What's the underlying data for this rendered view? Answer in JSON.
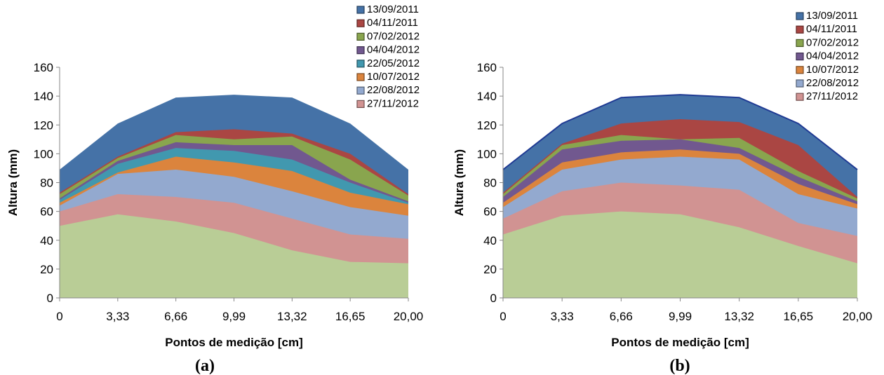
{
  "chart_data": [
    {
      "type": "area",
      "caption": "(a)",
      "xlabel": "Pontos de medição [cm]",
      "ylabel": "Altura (mm)",
      "categories": [
        "0",
        "3,33",
        "6,66",
        "9,99",
        "13,32",
        "16,65",
        "20,00"
      ],
      "ylim": [
        0,
        160
      ],
      "yticks": [
        "0",
        "20",
        "40",
        "60",
        "80",
        "100",
        "120",
        "140",
        "160"
      ],
      "legend_position": "top-right",
      "series": [
        {
          "name": "13/09/2011",
          "color": "#4572A7",
          "values": [
            89,
            121,
            139,
            141,
            139,
            121,
            89
          ]
        },
        {
          "name": "04/11/2011",
          "color": "#AA4643",
          "values": [
            73,
            98,
            115,
            117,
            114,
            100,
            72
          ]
        },
        {
          "name": "07/02/2012",
          "color": "#89A54E",
          "values": [
            72,
            97,
            113,
            110,
            112,
            96,
            71
          ]
        },
        {
          "name": "04/04/2012",
          "color": "#71588F",
          "values": [
            69,
            95,
            108,
            106,
            106,
            82,
            67
          ]
        },
        {
          "name": "22/05/2012",
          "color": "#4198AF",
          "values": [
            68,
            93,
            104,
            102,
            96,
            80,
            66
          ]
        },
        {
          "name": "10/07/2012",
          "color": "#DB843D",
          "values": [
            66,
            87,
            98,
            94,
            88,
            73,
            65
          ]
        },
        {
          "name": "22/08/2012",
          "color": "#93A9CF",
          "values": [
            64,
            86,
            89,
            84,
            74,
            63,
            57
          ]
        },
        {
          "name": "27/11/2012",
          "color": "#D19392",
          "values": [
            60,
            72,
            70,
            66,
            55,
            44,
            41
          ]
        },
        {
          "name": "",
          "color": "#B9CD96",
          "values": [
            50,
            58,
            53,
            45,
            33,
            25,
            24
          ]
        }
      ]
    },
    {
      "type": "area",
      "caption": "(b)",
      "xlabel": "Pontos de medição [cm]",
      "ylabel": "Altura (mm)",
      "categories": [
        "0",
        "3,33",
        "6,66",
        "9,99",
        "13,32",
        "16,65",
        "20,00"
      ],
      "ylim": [
        0,
        160
      ],
      "yticks": [
        "0",
        "20",
        "40",
        "60",
        "80",
        "100",
        "120",
        "140",
        "160"
      ],
      "legend_position": "top-right",
      "series": [
        {
          "name": "13/09/2011",
          "color": "#4572A7",
          "values": [
            89,
            121,
            139,
            141,
            139,
            121,
            89
          ]
        },
        {
          "name": "04/11/2011",
          "color": "#AA4643",
          "values": [
            73,
            107,
            121,
            124,
            122,
            106,
            70
          ]
        },
        {
          "name": "07/02/2012",
          "color": "#89A54E",
          "values": [
            72,
            106,
            113,
            110,
            111,
            88,
            69
          ]
        },
        {
          "name": "04/04/2012",
          "color": "#71588F",
          "values": [
            70,
            103,
            109,
            110,
            104,
            84,
            67
          ]
        },
        {
          "name": "10/07/2012",
          "color": "#DB843D",
          "values": [
            66,
            94,
            101,
            103,
            100,
            79,
            65
          ]
        },
        {
          "name": "22/08/2012",
          "color": "#93A9CF",
          "values": [
            63,
            89,
            96,
            98,
            96,
            72,
            62
          ]
        },
        {
          "name": "27/11/2012",
          "color": "#D19392",
          "values": [
            55,
            74,
            80,
            78,
            75,
            52,
            43
          ]
        },
        {
          "name": "",
          "color": "#B9CD96",
          "values": [
            44,
            57,
            60,
            58,
            49,
            36,
            24
          ]
        }
      ]
    }
  ]
}
